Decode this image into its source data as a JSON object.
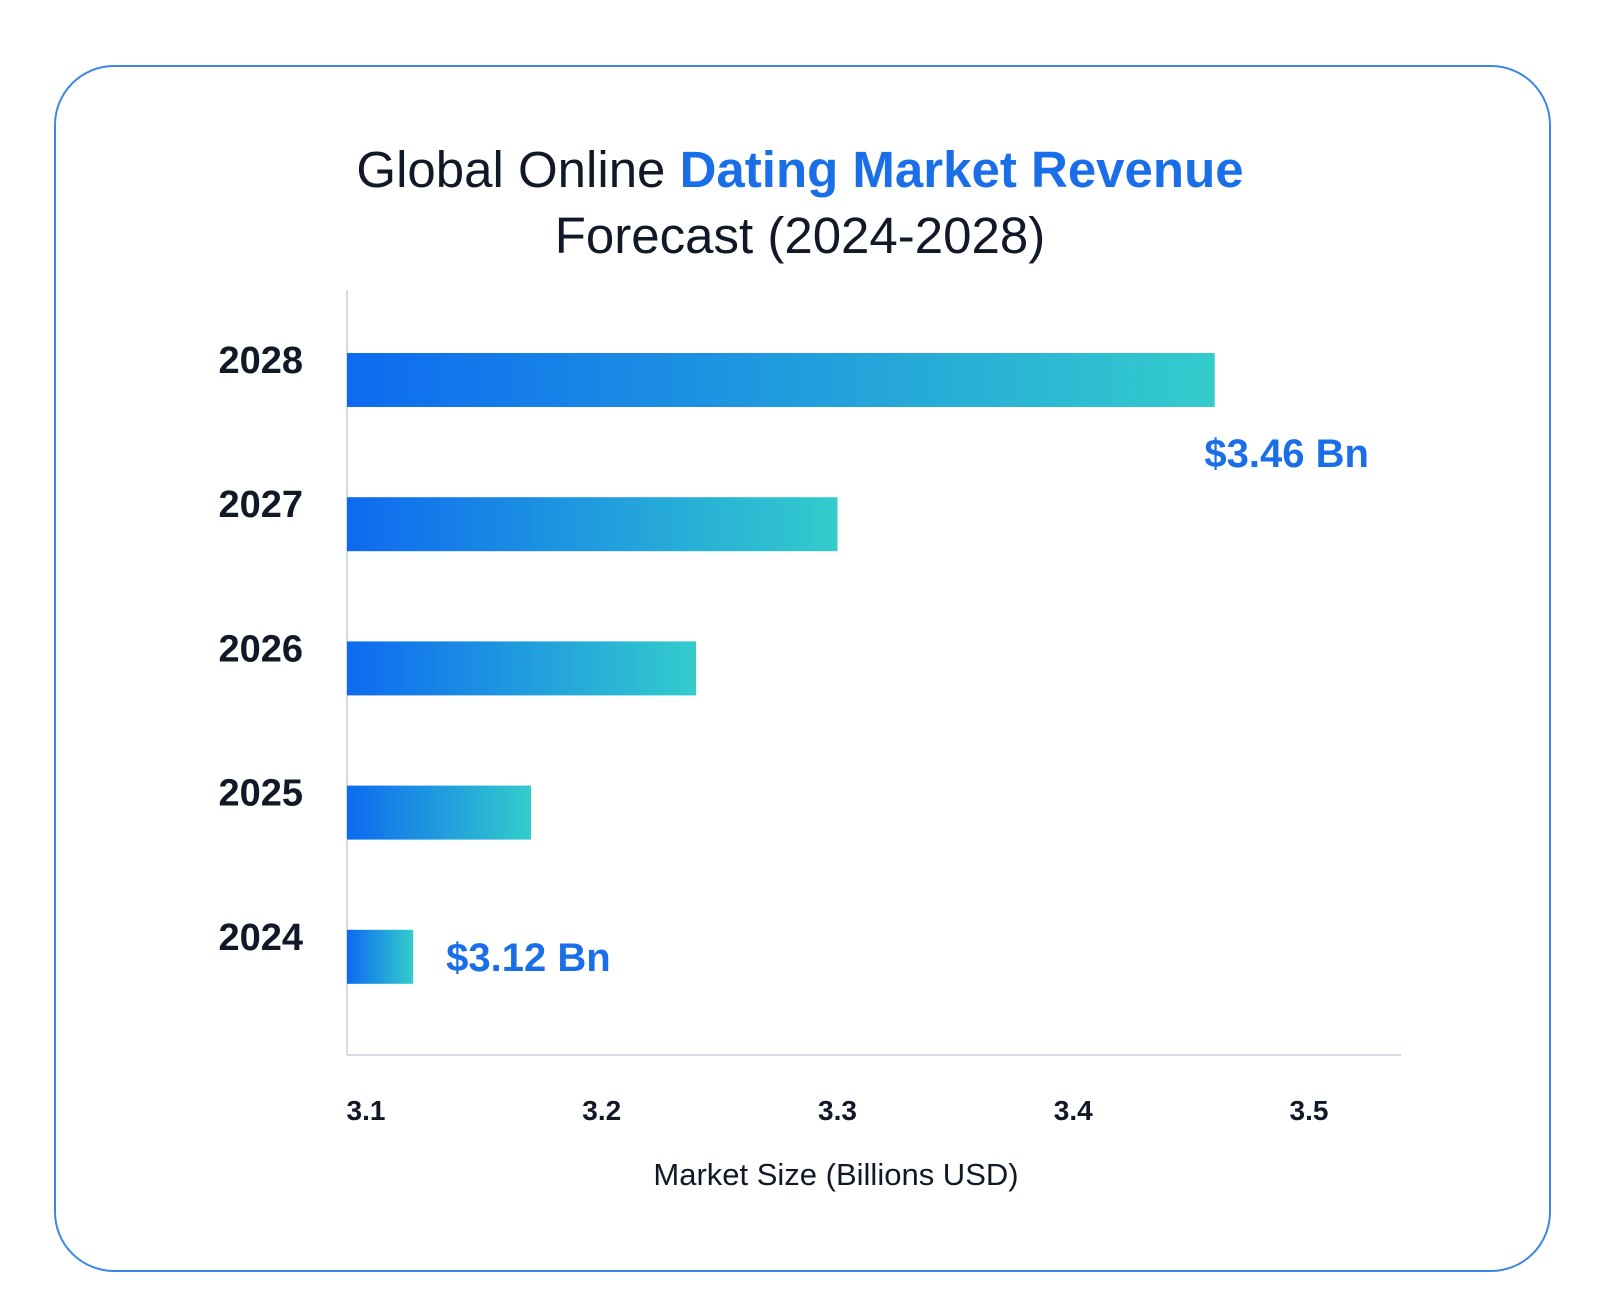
{
  "chart_data": {
    "type": "bar",
    "orientation": "horizontal",
    "title_parts": [
      "Global Online ",
      "Dating Market Revenue"
    ],
    "title_line2": "Forecast (2024-2028)",
    "categories": [
      "2028",
      "2027",
      "2026",
      "2025",
      "2024"
    ],
    "values": [
      3.46,
      3.3,
      3.24,
      3.17,
      3.12
    ],
    "data_labels": {
      "2028": "$3.46 Bn",
      "2024": "$3.12 Bn"
    },
    "xlabel": "Market Size (Billions USD)",
    "ylabel": "",
    "xlim": [
      3.1,
      3.5
    ],
    "xticks": [
      "3.1",
      "3.2",
      "3.3",
      "3.4",
      "3.5"
    ],
    "grid": false,
    "colors": {
      "gradient_start": "#0d6af0",
      "gradient_end": "#33cccc",
      "accent": "#1a6ee8",
      "border": "#3d86e6"
    }
  }
}
